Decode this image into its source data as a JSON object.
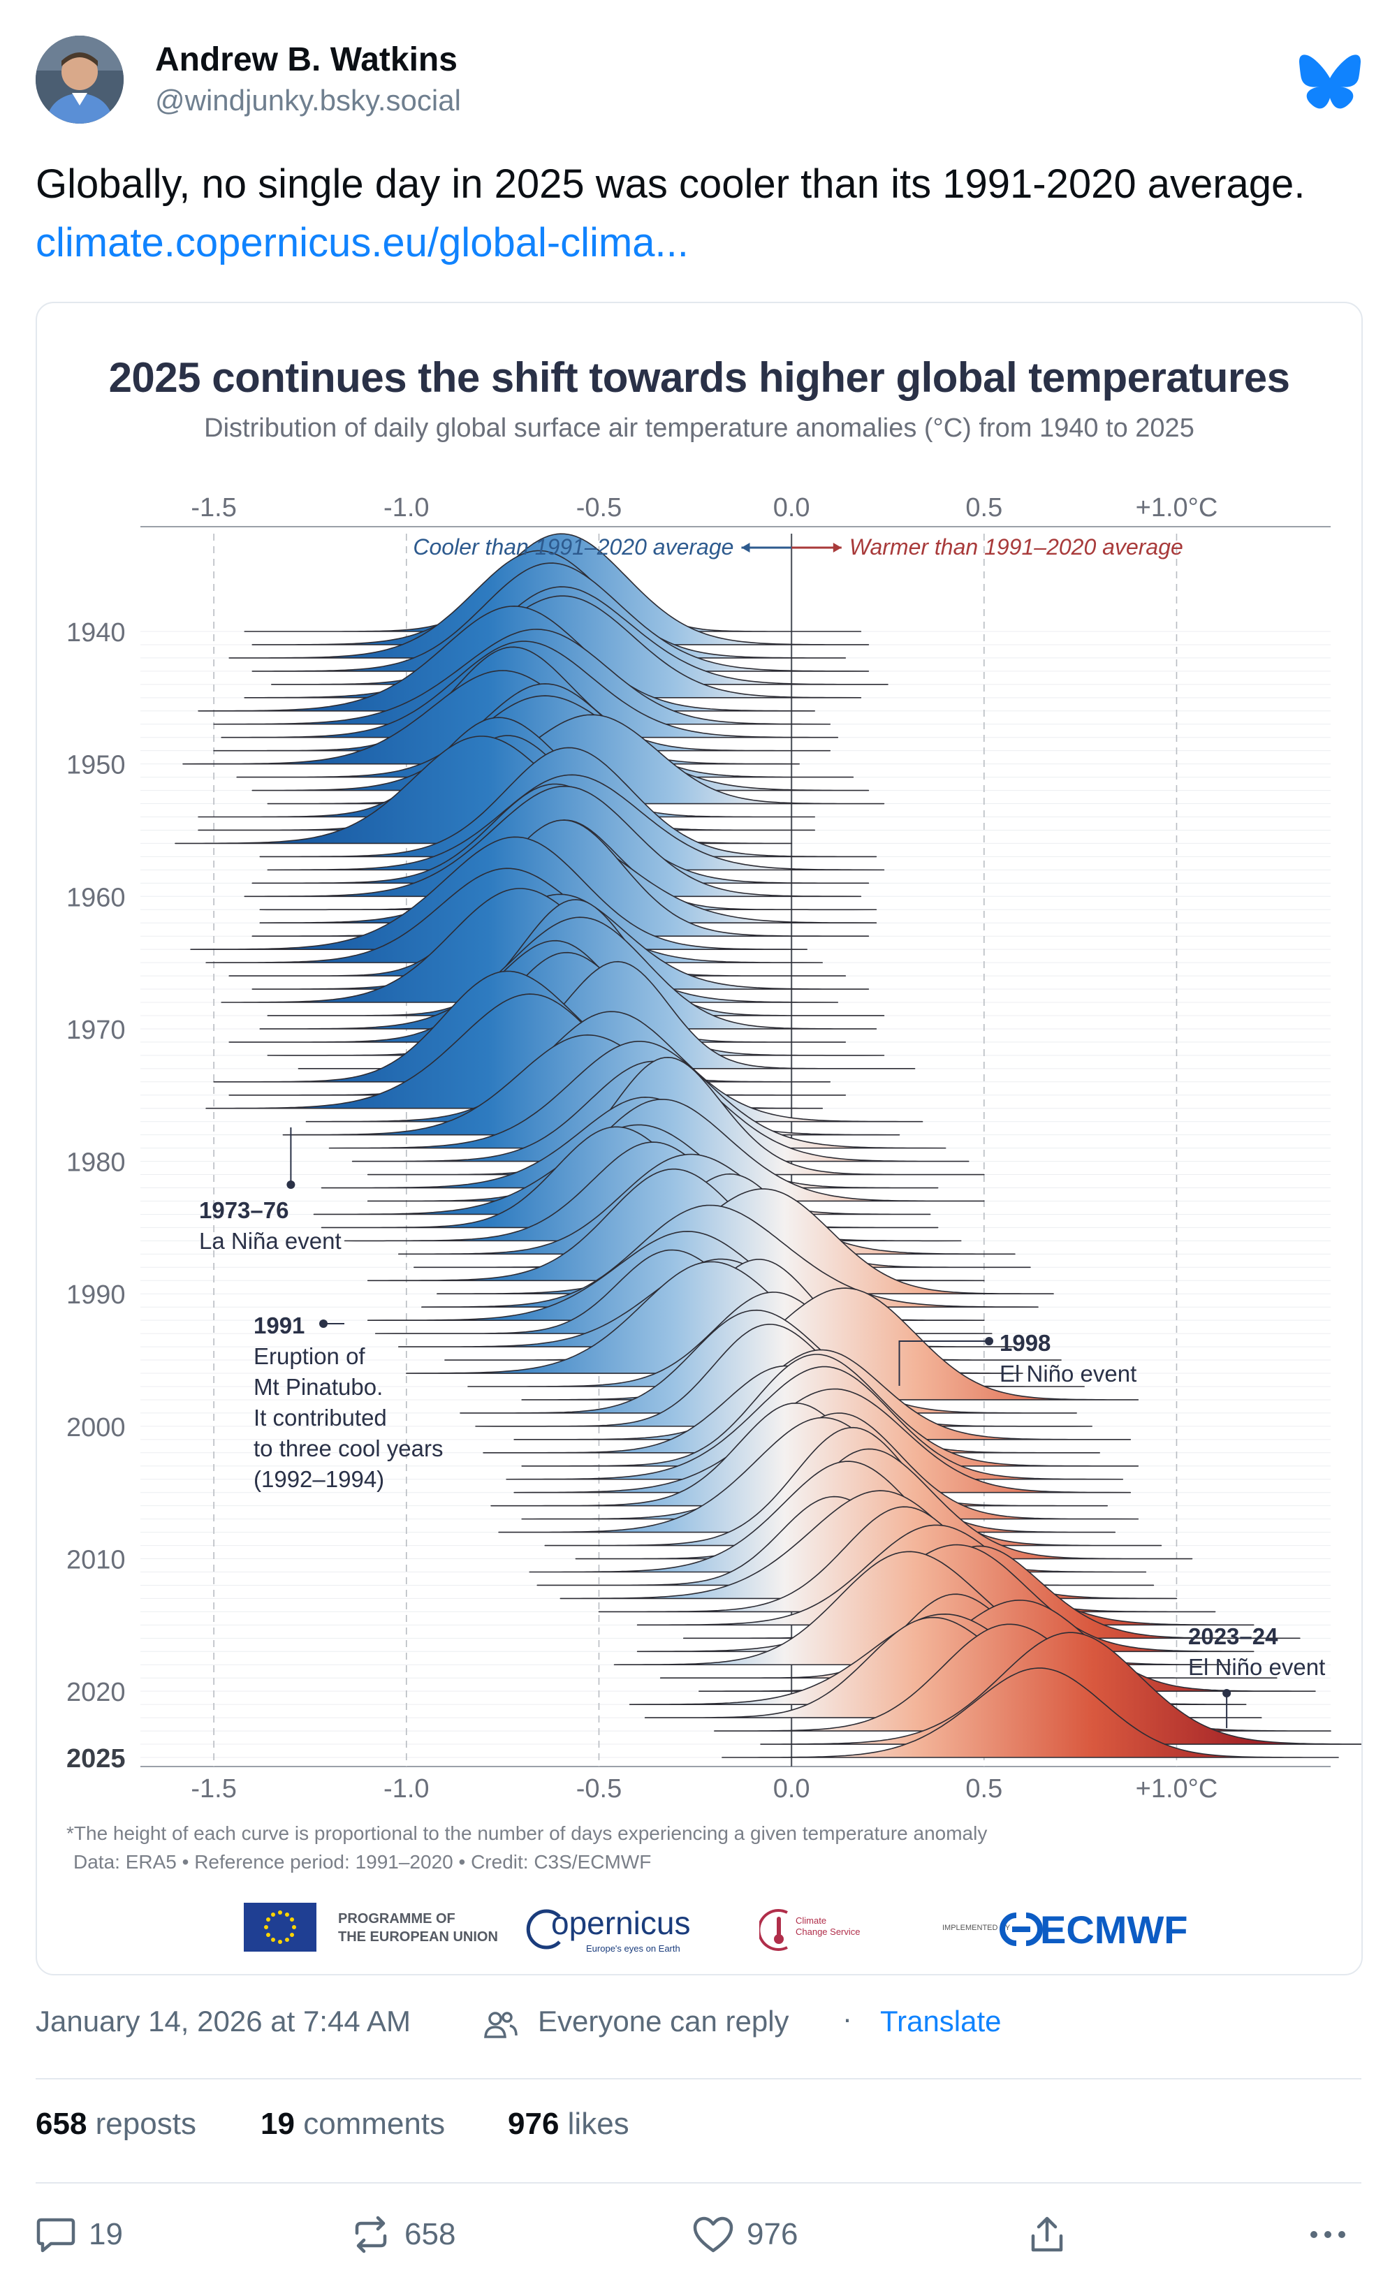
{
  "author": {
    "name": "Andrew B. Watkins",
    "handle": "@windjunky.bsky.social"
  },
  "post": {
    "text": "Globally, no single day in 2025 was cooler than its 1991-2020 average. ",
    "link_text": "climate.copernicus.eu/global-clima..."
  },
  "image": {
    "title": "2025 continues the shift towards higher global temperatures",
    "subtitle": "Distribution of daily global surface air temperature anomalies (°C) from 1940 to 2025",
    "footnote": "*The height of each curve is proportional to the number of days experiencing a given temperature anomaly",
    "datanote": "Data: ERA5 • Reference period: 1991–2020 • Credit: C3S/ECMWF",
    "logos": {
      "eu": "PROGRAMME OF THE EUROPEAN UNION",
      "eu_line1": "PROGRAMME OF",
      "eu_line2": "THE EUROPEAN UNION",
      "copernicus": "opernicus",
      "copernicus_sub": "Europe's eyes on Earth",
      "c3s_line1": "Climate",
      "c3s_line2": "Change Service",
      "implemented": "IMPLEMENTED BY",
      "ecmwf": "ECMWF"
    }
  },
  "chart_data": {
    "type": "ridgeline",
    "title": "2025 continues the shift towards higher global temperatures",
    "subtitle": "Distribution of daily global surface air temperature anomalies (°C) from 1940 to 2025",
    "x_tick_labels": [
      "-1.5",
      "-1.0",
      "-0.5",
      "0.0",
      "0.5",
      "+1.0°C"
    ],
    "x_ticks": [
      -1.5,
      -1.0,
      -0.5,
      0.0,
      0.5,
      1.0
    ],
    "xlim": [
      -1.6,
      1.4
    ],
    "year_labels": [
      "1940",
      "1950",
      "1960",
      "1970",
      "1980",
      "1990",
      "2000",
      "2010",
      "2020",
      "2025"
    ],
    "year_range": [
      1940,
      2025
    ],
    "cooler_label": "Cooler than 1991–2020 average",
    "warmer_label": "Warmer than 1991–2020 average",
    "annotations": [
      {
        "title": "1973–76",
        "lines": [
          "La Niña event"
        ],
        "year": 1974,
        "x": -1.3
      },
      {
        "title": "1991",
        "lines": [
          "Eruption of",
          "Mt Pinatubo.",
          "It contributed",
          "to three cool years",
          "(1992–1994)"
        ],
        "year": 1991,
        "x": -0.9
      },
      {
        "title": "1998",
        "lines": [
          "El Niño event"
        ],
        "year": 1998,
        "x": 0.28
      },
      {
        "title": "2023–24",
        "lines": [
          "El Niño event"
        ],
        "year": 2023,
        "x": 1.13
      }
    ],
    "annual_mean_anomaly": [
      -0.62,
      -0.6,
      -0.66,
      -0.6,
      -0.55,
      -0.62,
      -0.74,
      -0.7,
      -0.68,
      -0.7,
      -0.78,
      -0.64,
      -0.6,
      -0.56,
      -0.74,
      -0.74,
      -0.8,
      -0.58,
      -0.56,
      -0.6,
      -0.62,
      -0.58,
      -0.58,
      -0.6,
      -0.76,
      -0.72,
      -0.66,
      -0.6,
      -0.68,
      -0.56,
      -0.58,
      -0.66,
      -0.56,
      -0.48,
      -0.7,
      -0.66,
      -0.72,
      -0.46,
      -0.52,
      -0.4,
      -0.34,
      -0.3,
      -0.42,
      -0.3,
      -0.44,
      -0.42,
      -0.36,
      -0.22,
      -0.18,
      -0.3,
      -0.12,
      -0.16,
      -0.3,
      -0.28,
      -0.22,
      -0.1,
      -0.2,
      -0.04,
      0.1,
      -0.06,
      -0.02,
      0.08,
      0.0,
      0.1,
      0.06,
      0.08,
      0.02,
      0.1,
      0.04,
      0.16,
      0.24,
      0.12,
      0.14,
      0.2,
      0.3,
      0.4,
      0.52,
      0.4,
      0.34,
      0.46,
      0.56,
      0.38,
      0.42,
      0.6,
      0.72,
      0.62
    ]
  },
  "meta": {
    "timestamp": "January 14, 2026 at 7:44 AM",
    "reply_setting": "Everyone can reply",
    "separator": "·",
    "translate": "Translate"
  },
  "stats": {
    "reposts_count": "658",
    "reposts_label": "reposts",
    "comments_count": "19",
    "comments_label": "comments",
    "likes_count": "976",
    "likes_label": "likes"
  },
  "actions": {
    "reply_count": "19",
    "repost_count": "658",
    "like_count": "976"
  },
  "colors": {
    "link": "#1083fe",
    "cool": "#1f5fa8",
    "warm": "#b81f2c",
    "title": "#2a3147"
  },
  "icons": [
    "avatar",
    "bluesky-butterfly-icon",
    "people-icon",
    "comment-icon",
    "repost-icon",
    "heart-icon",
    "share-icon",
    "more-icon"
  ]
}
